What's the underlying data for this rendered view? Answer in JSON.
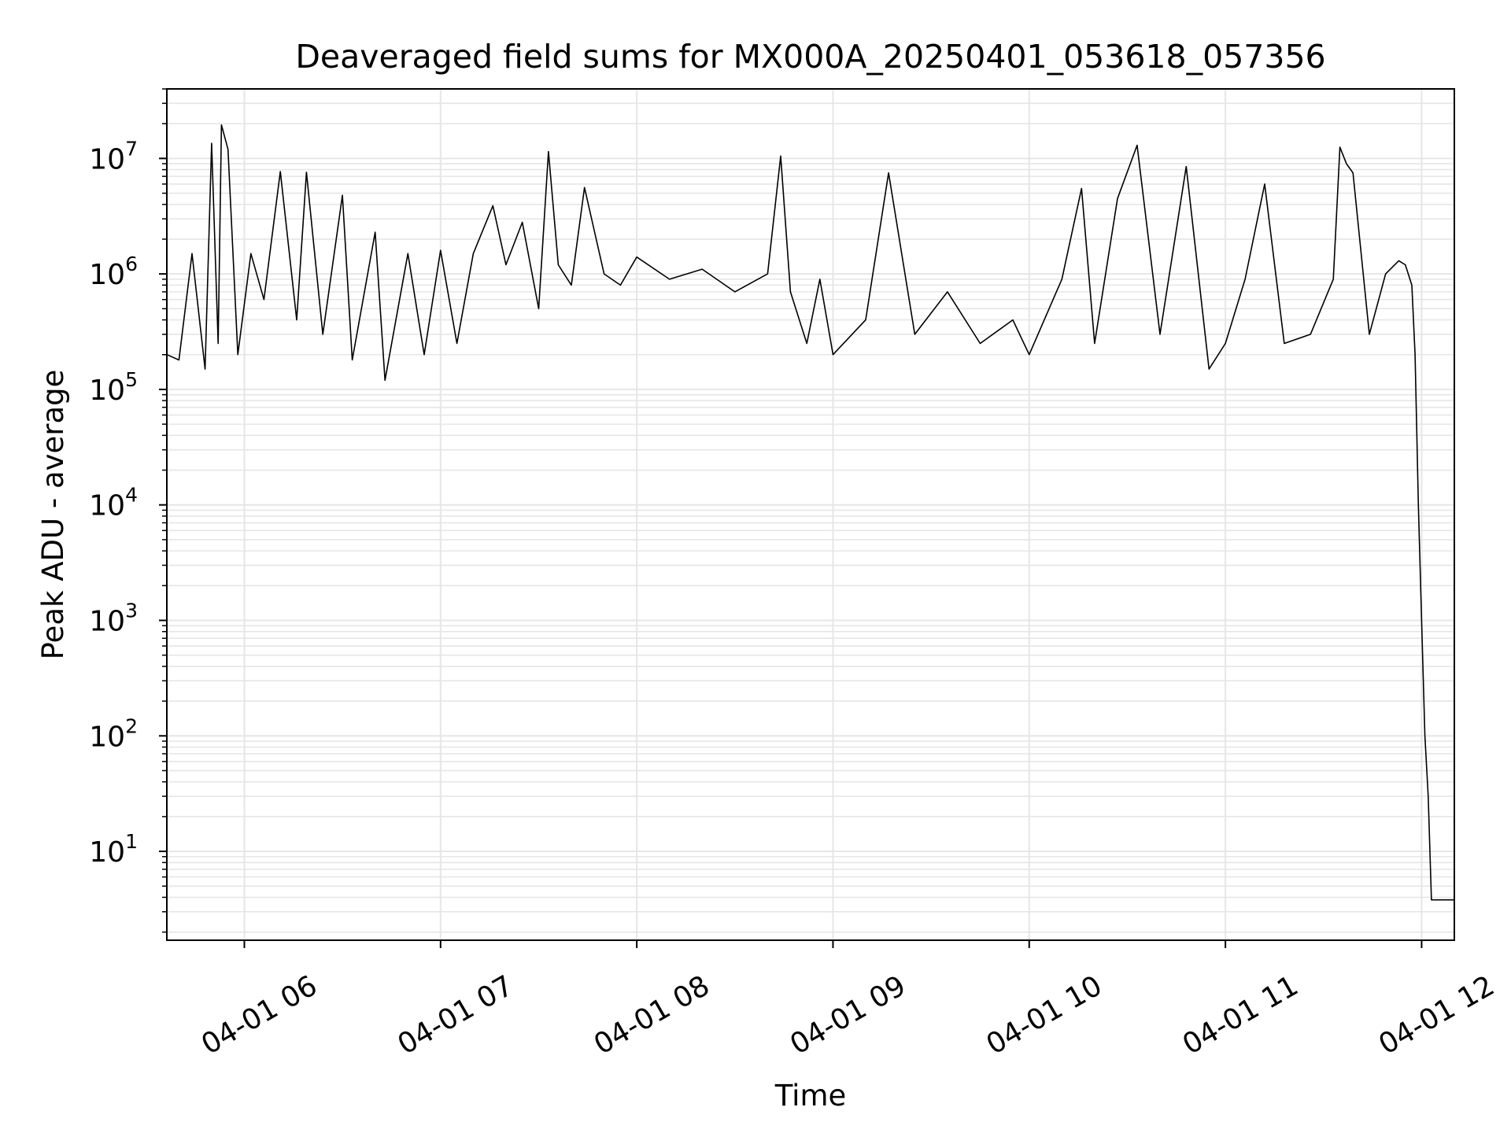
{
  "chart_data": {
    "type": "line",
    "title": "Deaveraged field sums for MX000A_20250401_053618_057356",
    "xlabel": "Time",
    "ylabel": "Peak ADU - average",
    "yscale": "log",
    "ylim": [
      1.7,
      40000000
    ],
    "xlim": [
      "2025-04-01 05:36:18",
      "2025-04-01 12:10:00"
    ],
    "grid": true,
    "line_color": "#000000",
    "grid_color": "#e6e6e6",
    "x_ticks": [
      {
        "value": "2025-04-01 06:00",
        "label": "04-01 06"
      },
      {
        "value": "2025-04-01 07:00",
        "label": "04-01 07"
      },
      {
        "value": "2025-04-01 08:00",
        "label": "04-01 08"
      },
      {
        "value": "2025-04-01 09:00",
        "label": "04-01 09"
      },
      {
        "value": "2025-04-01 10:00",
        "label": "04-01 10"
      },
      {
        "value": "2025-04-01 11:00",
        "label": "04-01 11"
      },
      {
        "value": "2025-04-01 12:00",
        "label": "04-01 12"
      }
    ],
    "y_ticks": [
      {
        "value": 10,
        "base": "10",
        "exp": "1"
      },
      {
        "value": 100,
        "base": "10",
        "exp": "2"
      },
      {
        "value": 1000,
        "base": "10",
        "exp": "3"
      },
      {
        "value": 10000,
        "base": "10",
        "exp": "4"
      },
      {
        "value": 100000,
        "base": "10",
        "exp": "5"
      },
      {
        "value": 1000000,
        "base": "10",
        "exp": "6"
      },
      {
        "value": 10000000,
        "base": "10",
        "exp": "7"
      }
    ],
    "series": [
      {
        "x": [
          "2025-04-01 05:36:18",
          "2025-04-01 05:40",
          "2025-04-01 05:44",
          "2025-04-01 05:48",
          "2025-04-01 05:50",
          "2025-04-01 05:52",
          "2025-04-01 05:53",
          "2025-04-01 05:55",
          "2025-04-01 05:58",
          "2025-04-01 06:02",
          "2025-04-01 06:06",
          "2025-04-01 06:11",
          "2025-04-01 06:16",
          "2025-04-01 06:19",
          "2025-04-01 06:24",
          "2025-04-01 06:30",
          "2025-04-01 06:33",
          "2025-04-01 06:40",
          "2025-04-01 06:43",
          "2025-04-01 06:50",
          "2025-04-01 06:55",
          "2025-04-01 07:00",
          "2025-04-01 07:05",
          "2025-04-01 07:10",
          "2025-04-01 07:16",
          "2025-04-01 07:20",
          "2025-04-01 07:25",
          "2025-04-01 07:30",
          "2025-04-01 07:33",
          "2025-04-01 07:36",
          "2025-04-01 07:40",
          "2025-04-01 07:44",
          "2025-04-01 07:50",
          "2025-04-01 07:55",
          "2025-04-01 08:00",
          "2025-04-01 08:10",
          "2025-04-01 08:20",
          "2025-04-01 08:30",
          "2025-04-01 08:40",
          "2025-04-01 08:44",
          "2025-04-01 08:47",
          "2025-04-01 08:52",
          "2025-04-01 08:56",
          "2025-04-01 09:00",
          "2025-04-01 09:10",
          "2025-04-01 09:17",
          "2025-04-01 09:25",
          "2025-04-01 09:35",
          "2025-04-01 09:45",
          "2025-04-01 09:55",
          "2025-04-01 10:00",
          "2025-04-01 10:10",
          "2025-04-01 10:16",
          "2025-04-01 10:20",
          "2025-04-01 10:27",
          "2025-04-01 10:33",
          "2025-04-01 10:40",
          "2025-04-01 10:48",
          "2025-04-01 10:55",
          "2025-04-01 11:00",
          "2025-04-01 11:06",
          "2025-04-01 11:12",
          "2025-04-01 11:18",
          "2025-04-01 11:26",
          "2025-04-01 11:33",
          "2025-04-01 11:35",
          "2025-04-01 11:37",
          "2025-04-01 11:39",
          "2025-04-01 11:44",
          "2025-04-01 11:49",
          "2025-04-01 11:53",
          "2025-04-01 11:55",
          "2025-04-01 11:57",
          "2025-04-01 11:58",
          "2025-04-01 11:59",
          "2025-04-01 12:00",
          "2025-04-01 12:01",
          "2025-04-01 12:02",
          "2025-04-01 12:03",
          "2025-04-01 12:04",
          "2025-04-01 12:10"
        ],
        "y": [
          200000,
          180000,
          1500000,
          150000,
          13500000,
          250000,
          19500000,
          12000000,
          200000,
          1500000,
          600000,
          7700000,
          400000,
          7600000,
          300000,
          4800000,
          180000,
          2300000,
          120000,
          1500000,
          200000,
          1600000,
          250000,
          1500000,
          3900000,
          1200000,
          2800000,
          500000,
          11500000,
          1200000,
          800000,
          5600000,
          1000000,
          800000,
          1400000,
          900000,
          1100000,
          700000,
          1000000,
          10500000,
          700000,
          250000,
          900000,
          200000,
          400000,
          7500000,
          300000,
          700000,
          250000,
          400000,
          200000,
          900000,
          5500000,
          250000,
          4500000,
          13000000,
          300000,
          8500000,
          150000,
          250000,
          900000,
          6000000,
          250000,
          300000,
          900000,
          12500000,
          9000000,
          7500000,
          300000,
          1000000,
          1300000,
          1200000,
          800000,
          200000,
          10000,
          1000,
          100,
          30,
          3.8,
          3.8,
          3.8
        ]
      }
    ]
  }
}
